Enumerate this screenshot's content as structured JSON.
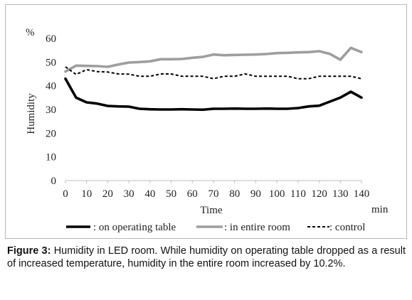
{
  "chart_data": {
    "type": "line",
    "ylabel": "Humidity",
    "y_unit": "%",
    "xlabel": "Time",
    "x_unit": "min",
    "xlim": [
      0,
      140
    ],
    "ylim": [
      0,
      60
    ],
    "x_ticks": [
      0,
      10,
      20,
      30,
      40,
      50,
      60,
      70,
      80,
      90,
      100,
      110,
      120,
      130,
      140
    ],
    "y_ticks": [
      0,
      10,
      20,
      30,
      40,
      50,
      60
    ],
    "grid": false,
    "legend_position": "bottom",
    "x": [
      0,
      5,
      10,
      15,
      20,
      25,
      30,
      35,
      40,
      45,
      50,
      55,
      60,
      65,
      70,
      75,
      80,
      85,
      90,
      95,
      100,
      105,
      110,
      115,
      120,
      125,
      130,
      135,
      140
    ],
    "series": [
      {
        "name": ": on operating table",
        "color": "#000000",
        "style": "solid-thick",
        "values": [
          43,
          35,
          33,
          32.5,
          31.5,
          31.3,
          31.2,
          30.3,
          30.1,
          30.0,
          30.0,
          30.1,
          30.0,
          29.9,
          30.3,
          30.3,
          30.4,
          30.3,
          30.3,
          30.4,
          30.3,
          30.3,
          30.6,
          31.3,
          31.6,
          33.3,
          35.0,
          37.5,
          35.0
        ]
      },
      {
        "name": ": in entire room",
        "color": "#9e9e9e",
        "style": "solid-thick",
        "values": [
          46,
          48.5,
          48.4,
          48.3,
          48.0,
          49.0,
          49.8,
          50.0,
          50.3,
          51.2,
          51.2,
          51.3,
          51.8,
          52.2,
          53.2,
          52.9,
          53.0,
          53.1,
          53.2,
          53.4,
          53.8,
          53.9,
          54.1,
          54.2,
          54.6,
          53.5,
          51.0,
          56.0,
          54.2
        ]
      },
      {
        "name": ": control",
        "color": "#000000",
        "style": "dashed",
        "values": [
          48,
          44.8,
          46.8,
          46.0,
          45.8,
          45.0,
          44.9,
          44.0,
          44.0,
          45.0,
          45.0,
          44.0,
          44.0,
          44.0,
          43.0,
          44.0,
          44.0,
          45.0,
          44.0,
          44.0,
          44.0,
          44.0,
          43.0,
          43.0,
          44.0,
          44.0,
          44.0,
          44.0,
          43.0
        ]
      }
    ]
  },
  "caption": {
    "label": "Figure 3:",
    "text": " Humidity in LED room. While humidity on operating table dropped as a result of increased temperature, humidity in the entire room increased by 10.2%."
  }
}
